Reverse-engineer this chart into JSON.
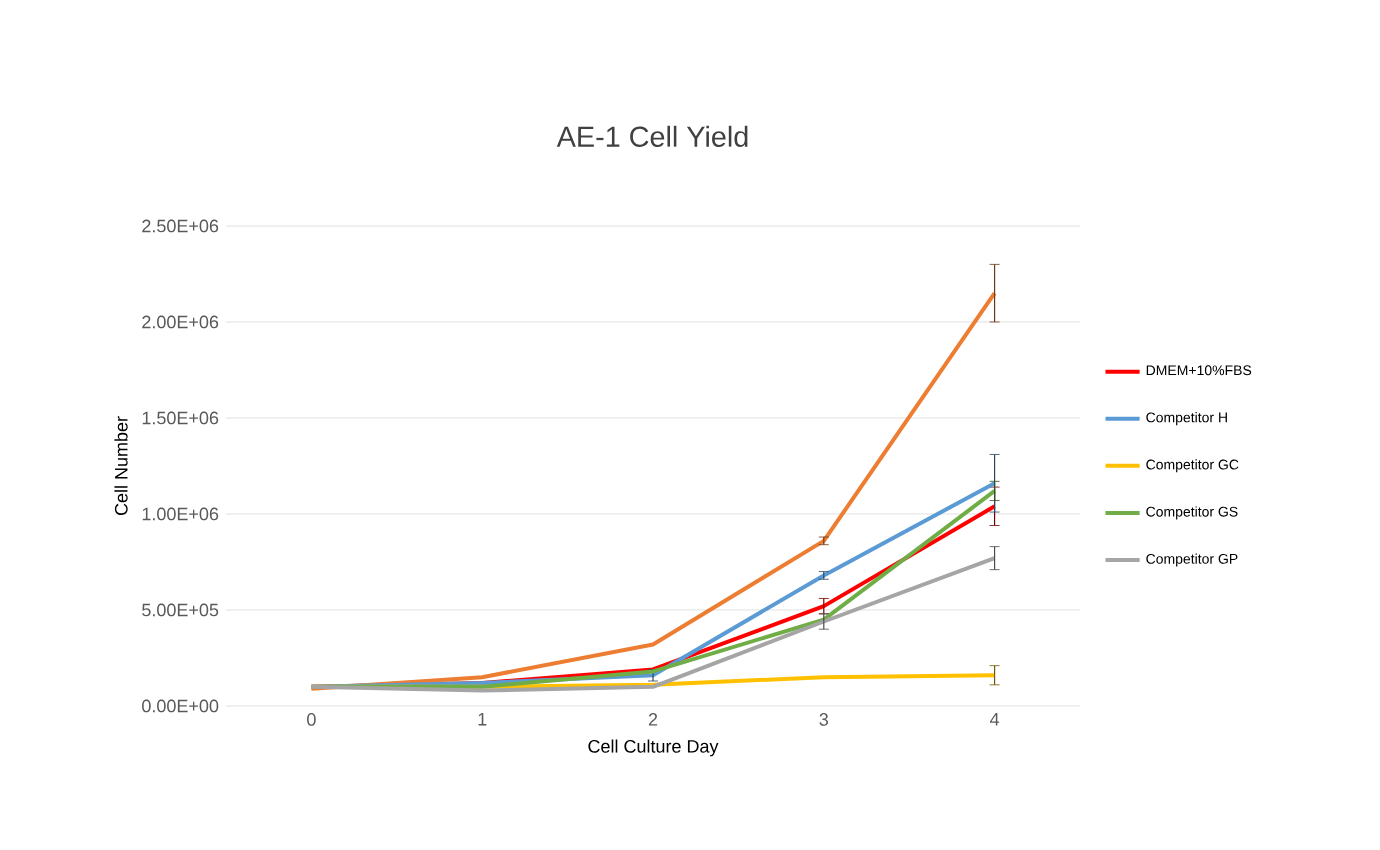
{
  "chart_data": {
    "type": "line",
    "title": "AE-1 Cell Yield",
    "xlabel": "Cell Culture Day",
    "ylabel": "Cell Number",
    "categories": [
      "0",
      "1",
      "2",
      "3",
      "4"
    ],
    "series": [
      {
        "name": "DMEM+10%FBS",
        "color": "#ff0000",
        "values": [
          100000,
          120000,
          190000,
          520000,
          1040000
        ],
        "errors": [
          null,
          null,
          null,
          40000,
          100000
        ]
      },
      {
        "color": "#ed7d31",
        "values": [
          90000,
          150000,
          320000,
          860000,
          2150000
        ],
        "errors": [
          null,
          null,
          null,
          20000,
          150000
        ]
      },
      {
        "name": "Competitor H",
        "color": "#5b9bd5",
        "values": [
          100000,
          120000,
          160000,
          680000,
          1160000
        ],
        "errors": [
          null,
          null,
          30000,
          20000,
          150000
        ]
      },
      {
        "name": "Competitor GC",
        "color": "#ffc000",
        "values": [
          100000,
          100000,
          110000,
          150000,
          160000
        ],
        "errors": [
          null,
          null,
          null,
          null,
          50000
        ]
      },
      {
        "name": "Competitor GS",
        "color": "#70ad47",
        "values": [
          100000,
          100000,
          180000,
          450000,
          1120000
        ],
        "errors": [
          null,
          null,
          null,
          null,
          50000
        ]
      },
      {
        "name": "Competitor GP",
        "color": "#a5a5a5",
        "values": [
          100000,
          80000,
          100000,
          440000,
          770000
        ],
        "errors": [
          null,
          null,
          null,
          40000,
          60000
        ]
      }
    ],
    "ylim": [
      0,
      2500000
    ],
    "yticks": [
      {
        "value": 0,
        "label": "0.00E+00"
      },
      {
        "value": 500000,
        "label": "5.00E+05"
      },
      {
        "value": 1000000,
        "label": "1.00E+06"
      },
      {
        "value": 1500000,
        "label": "1.50E+06"
      },
      {
        "value": 2000000,
        "label": "2.00E+06"
      },
      {
        "value": 2500000,
        "label": "2.50E+06"
      }
    ],
    "grid": "y",
    "legend": "right",
    "marker": "none",
    "line_style": "solid"
  }
}
